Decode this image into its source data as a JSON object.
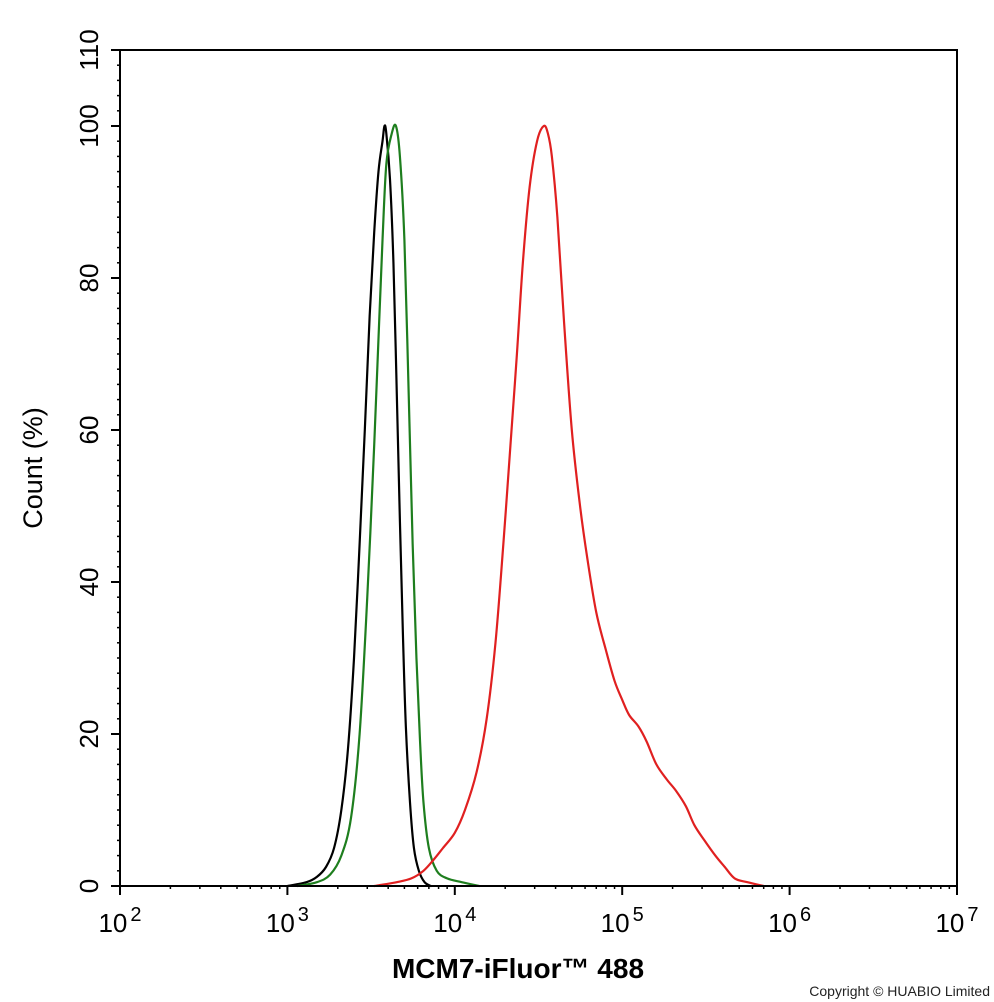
{
  "chart_data": {
    "type": "line",
    "title": "",
    "xlabel": "MCM7-iFluor™ 488",
    "ylabel": "Count  (%)",
    "x_scale": "log",
    "xlim": [
      100,
      10000000
    ],
    "ylim": [
      0,
      110
    ],
    "x_tick_base": "10",
    "x_tick_exponents": [
      "2",
      "3",
      "4",
      "5",
      "6",
      "7"
    ],
    "y_ticks": [
      0,
      20,
      40,
      60,
      80,
      100,
      110
    ],
    "grid": false,
    "legend": "none",
    "series": [
      {
        "color": "#000000",
        "points": [
          [
            1000,
            0
          ],
          [
            1300,
            0.5
          ],
          [
            1500,
            1.2
          ],
          [
            1700,
            2.5
          ],
          [
            1900,
            5
          ],
          [
            2100,
            10
          ],
          [
            2300,
            18
          ],
          [
            2500,
            30
          ],
          [
            2700,
            45
          ],
          [
            2900,
            60
          ],
          [
            3100,
            75
          ],
          [
            3300,
            86
          ],
          [
            3500,
            94
          ],
          [
            3700,
            98
          ],
          [
            3800,
            100
          ],
          [
            3900,
            99
          ],
          [
            4100,
            93
          ],
          [
            4300,
            82
          ],
          [
            4500,
            65
          ],
          [
            4700,
            48
          ],
          [
            4900,
            33
          ],
          [
            5100,
            21
          ],
          [
            5400,
            11
          ],
          [
            5700,
            5
          ],
          [
            6100,
            2
          ],
          [
            6600,
            0.5
          ],
          [
            7200,
            0
          ]
        ]
      },
      {
        "color": "#1e7e1e",
        "points": [
          [
            1150,
            0
          ],
          [
            1500,
            0.5
          ],
          [
            1800,
            1.5
          ],
          [
            2100,
            4
          ],
          [
            2400,
            9
          ],
          [
            2700,
            20
          ],
          [
            3000,
            38
          ],
          [
            3300,
            58
          ],
          [
            3500,
            72
          ],
          [
            3700,
            85
          ],
          [
            3900,
            95
          ],
          [
            4200,
            99
          ],
          [
            4450,
            100
          ],
          [
            4700,
            96
          ],
          [
            5000,
            85
          ],
          [
            5300,
            65
          ],
          [
            5600,
            45
          ],
          [
            5900,
            30
          ],
          [
            6200,
            19
          ],
          [
            6500,
            11
          ],
          [
            7000,
            5
          ],
          [
            7800,
            2
          ],
          [
            9000,
            1
          ],
          [
            11000,
            0.5
          ],
          [
            14000,
            0
          ]
        ]
      },
      {
        "color": "#e02020",
        "points": [
          [
            3300,
            0
          ],
          [
            4500,
            0.5
          ],
          [
            5500,
            1
          ],
          [
            6500,
            2
          ],
          [
            7500,
            3.5
          ],
          [
            8500,
            5
          ],
          [
            10000,
            7
          ],
          [
            11500,
            10
          ],
          [
            13500,
            15
          ],
          [
            15500,
            22
          ],
          [
            17500,
            32
          ],
          [
            19500,
            45
          ],
          [
            21500,
            58
          ],
          [
            23500,
            70
          ],
          [
            25500,
            82
          ],
          [
            28000,
            92
          ],
          [
            31000,
            98
          ],
          [
            34000,
            100
          ],
          [
            36000,
            99
          ],
          [
            38000,
            96
          ],
          [
            41000,
            88
          ],
          [
            45000,
            74
          ],
          [
            50000,
            60
          ],
          [
            56000,
            50
          ],
          [
            62000,
            43
          ],
          [
            70000,
            36
          ],
          [
            80000,
            31
          ],
          [
            90000,
            27
          ],
          [
            100000,
            24.5
          ],
          [
            110000,
            22.5
          ],
          [
            125000,
            21
          ],
          [
            140000,
            19
          ],
          [
            160000,
            16
          ],
          [
            185000,
            14
          ],
          [
            210000,
            12.5
          ],
          [
            240000,
            10.5
          ],
          [
            270000,
            8
          ],
          [
            310000,
            6
          ],
          [
            360000,
            4
          ],
          [
            410000,
            2.5
          ],
          [
            470000,
            1
          ],
          [
            560000,
            0.5
          ],
          [
            700000,
            0
          ]
        ]
      }
    ]
  },
  "footer": {
    "copyright": "Copyright © HUABIO Limited"
  }
}
